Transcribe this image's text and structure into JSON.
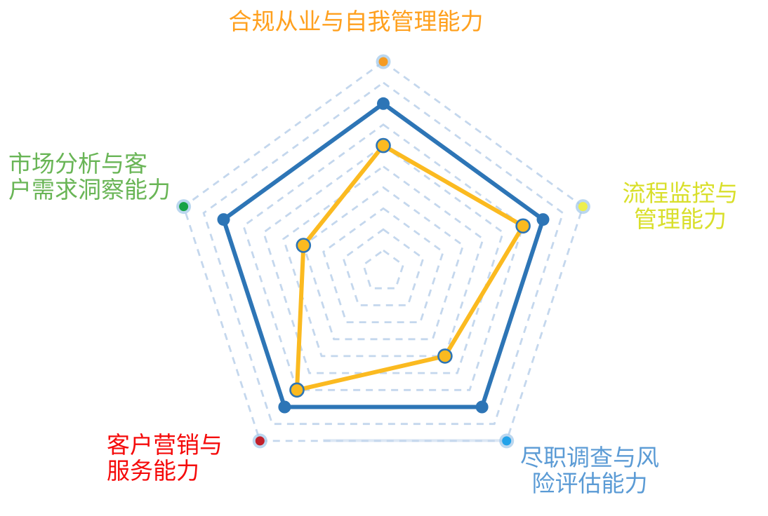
{
  "chart_data": {
    "type": "radar",
    "shape": "pentagon",
    "axes": [
      {
        "position": "top",
        "label": "合规从业与自我管理能力",
        "label_color": "#FFA01E",
        "dot_color": "#F59B22"
      },
      {
        "position": "right",
        "label": "流程监控与管理能力",
        "label_color": "#D9DF2B",
        "dot_color": "#EDEF4D"
      },
      {
        "position": "bottom-right",
        "label": "尽职调查与风险评估能力",
        "label_color": "#5B9BD5",
        "dot_color": "#22A2E9"
      },
      {
        "position": "bottom-left",
        "label": "客户营销与服务能力",
        "label_color": "#F50A0A",
        "dot_color": "#C2202A"
      },
      {
        "position": "left",
        "label": "市场分析与客户需求洞察能力",
        "label_color": "#69B556",
        "dot_color": "#17A346"
      }
    ],
    "series": [
      {
        "name": "blue",
        "values": [
          8,
          8,
          8,
          8,
          8
        ],
        "line_color": "#2D75B6",
        "marker_color": "#2D75B6"
      },
      {
        "name": "orange",
        "values": [
          6,
          7,
          5,
          7,
          4
        ],
        "line_color": "#FBBA20",
        "marker_color": "#FBBA20",
        "marker_outline": "#2D75B6"
      }
    ],
    "scale": {
      "min": 0,
      "max": 10,
      "rings": 10
    },
    "grid": {
      "style": "dashed",
      "color": "#C4D7ED",
      "halo_color": "#A4C9E9"
    },
    "legend": "none"
  },
  "labels": {
    "top": {
      "line1": "合规从业与自我管理能力"
    },
    "right": {
      "line1": "流程监控与",
      "line2": "管理能力"
    },
    "bottom_right": {
      "line1": "尽职调查与风",
      "line2": "险评估能力"
    },
    "bottom_left": {
      "line1": "客户营销与",
      "line2": "服务能力"
    },
    "left": {
      "line1": "市场分析与客",
      "line2": "户需求洞察能力"
    }
  }
}
